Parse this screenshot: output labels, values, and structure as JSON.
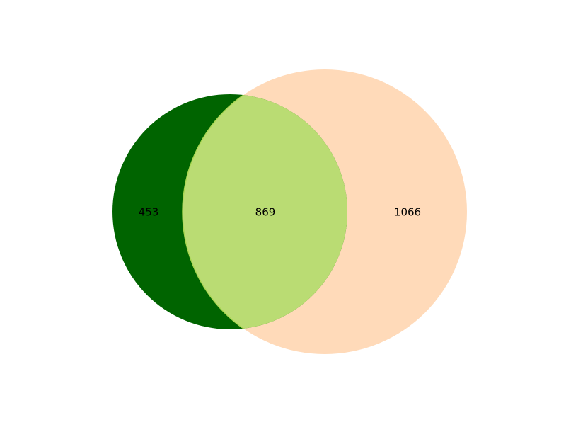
{
  "venn": {
    "type": "venn2",
    "sets": [
      {
        "color": "#006400"
      },
      {
        "color": "#FFDAB9"
      }
    ],
    "intersection_color": "#BADC73",
    "intersection_edge_color": "#A8D651",
    "regions": {
      "only_a": "453",
      "both": "869",
      "only_b": "1066"
    }
  }
}
